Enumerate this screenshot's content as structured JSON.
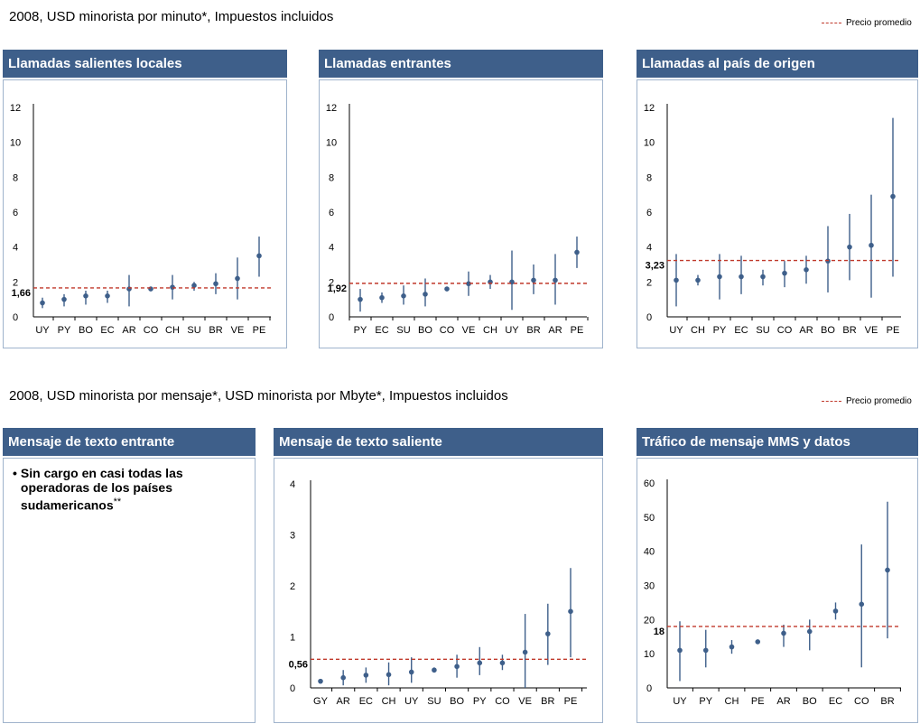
{
  "section1": {
    "caption": "2008, USD minorista por minuto*, Impuestos incluidos",
    "legend": "Precio promedio"
  },
  "section2": {
    "caption": "2008, USD minorista por mensaje*, USD minorista por Mbyte*, Impuestos incluidos",
    "legend": "Precio promedio"
  },
  "colors": {
    "header": "#3e5f8a",
    "point": "#3e5f8a",
    "avg_line": "#c0392b",
    "border": "#9fb3cc"
  },
  "panels": {
    "p1": {
      "title": "Llamadas salientes locales"
    },
    "p2": {
      "title": "Llamadas entrantes"
    },
    "p3": {
      "title": "Llamadas al país de origen"
    },
    "p4": {
      "title": "Mensaje de texto entrante",
      "note": "Sin cargo en casi todas las operadoras de los países sudamericanos",
      "note_mark": "**"
    },
    "p5": {
      "title": "Mensaje de texto saliente"
    },
    "p6": {
      "title": "Tráfico de mensaje MMS y datos"
    }
  },
  "chart_data": [
    {
      "id": "p1",
      "type": "scatter",
      "title": "Llamadas salientes locales",
      "ylim": [
        0,
        12
      ],
      "yticks": [
        0,
        2,
        4,
        6,
        8,
        10,
        12
      ],
      "categories": [
        "UY",
        "PY",
        "BO",
        "EC",
        "AR",
        "CO",
        "CH",
        "SU",
        "BR",
        "VE",
        "PE"
      ],
      "values": [
        0.8,
        1.0,
        1.2,
        1.2,
        1.6,
        1.6,
        1.7,
        1.8,
        1.9,
        2.2,
        3.5
      ],
      "low": [
        0.5,
        0.6,
        0.7,
        0.8,
        0.6,
        1.6,
        1.0,
        1.5,
        1.3,
        1.0,
        2.3
      ],
      "high": [
        1.1,
        1.3,
        1.5,
        1.5,
        2.4,
        1.6,
        2.4,
        2.0,
        2.5,
        3.4,
        4.6
      ],
      "average": 1.66,
      "average_label": "1,66",
      "grid": false
    },
    {
      "id": "p2",
      "type": "scatter",
      "title": "Llamadas entrantes",
      "ylim": [
        0,
        12
      ],
      "yticks": [
        0,
        2,
        4,
        6,
        8,
        10,
        12
      ],
      "categories": [
        "PY",
        "EC",
        "SU",
        "BO",
        "CO",
        "VE",
        "CH",
        "UY",
        "BR",
        "AR",
        "PE"
      ],
      "values": [
        1.0,
        1.1,
        1.2,
        1.3,
        1.6,
        1.9,
        2.0,
        2.0,
        2.1,
        2.1,
        3.7
      ],
      "low": [
        0.3,
        0.8,
        0.7,
        0.6,
        1.5,
        1.2,
        1.6,
        0.4,
        1.3,
        0.7,
        2.8
      ],
      "high": [
        1.6,
        1.4,
        1.8,
        2.2,
        1.7,
        2.6,
        2.4,
        3.8,
        3.0,
        3.6,
        4.6
      ],
      "average": 1.92,
      "average_label": "1,92",
      "grid": false
    },
    {
      "id": "p3",
      "type": "scatter",
      "title": "Llamadas al país de origen",
      "ylim": [
        0,
        12
      ],
      "yticks": [
        0,
        2,
        4,
        6,
        8,
        10,
        12
      ],
      "categories": [
        "UY",
        "CH",
        "PY",
        "EC",
        "SU",
        "CO",
        "AR",
        "BO",
        "BR",
        "VE",
        "PE"
      ],
      "values": [
        2.1,
        2.1,
        2.3,
        2.3,
        2.3,
        2.5,
        2.7,
        3.2,
        4.0,
        4.1,
        6.9
      ],
      "low": [
        0.6,
        1.8,
        1.0,
        1.3,
        1.8,
        1.7,
        1.9,
        1.4,
        2.1,
        1.1,
        2.3
      ],
      "high": [
        3.6,
        2.4,
        3.6,
        3.5,
        2.7,
        3.2,
        3.5,
        5.2,
        5.9,
        7.0,
        11.4
      ],
      "average": 3.23,
      "average_label": "3,23",
      "grid": false
    },
    {
      "id": "p5",
      "type": "scatter",
      "title": "Mensaje de texto saliente",
      "ylim": [
        0,
        4
      ],
      "yticks": [
        0,
        1,
        2,
        3,
        4
      ],
      "categories": [
        "GY",
        "AR",
        "EC",
        "CH",
        "UY",
        "SU",
        "BO",
        "PY",
        "CO",
        "VE",
        "BR",
        "PE"
      ],
      "values": [
        0.13,
        0.2,
        0.25,
        0.26,
        0.31,
        0.35,
        0.42,
        0.49,
        0.49,
        0.7,
        1.06,
        1.5
      ],
      "low": [
        0.1,
        0.05,
        0.1,
        0.05,
        0.1,
        0.3,
        0.2,
        0.25,
        0.35,
        0.0,
        0.45,
        0.6
      ],
      "high": [
        0.15,
        0.35,
        0.4,
        0.5,
        0.6,
        0.4,
        0.65,
        0.8,
        0.65,
        1.45,
        1.65,
        2.35
      ],
      "average": 0.56,
      "average_label": "0,56",
      "grid": false
    },
    {
      "id": "p6",
      "type": "scatter",
      "title": "Tráfico de mensaje MMS y datos",
      "ylim": [
        0,
        60
      ],
      "yticks": [
        0,
        10,
        20,
        30,
        40,
        50,
        60
      ],
      "categories": [
        "UY",
        "PY",
        "CH",
        "PE",
        "AR",
        "BO",
        "EC",
        "CO",
        "BR"
      ],
      "values": [
        11,
        11,
        12,
        13.5,
        16,
        16.5,
        22.5,
        24.5,
        34.5
      ],
      "low": [
        2,
        6,
        10,
        13,
        12,
        11,
        20,
        6,
        14.5
      ],
      "high": [
        19.5,
        17,
        14,
        14,
        18.5,
        20,
        25,
        42,
        54.5
      ],
      "average": 18,
      "average_label": "18",
      "grid": false
    }
  ]
}
